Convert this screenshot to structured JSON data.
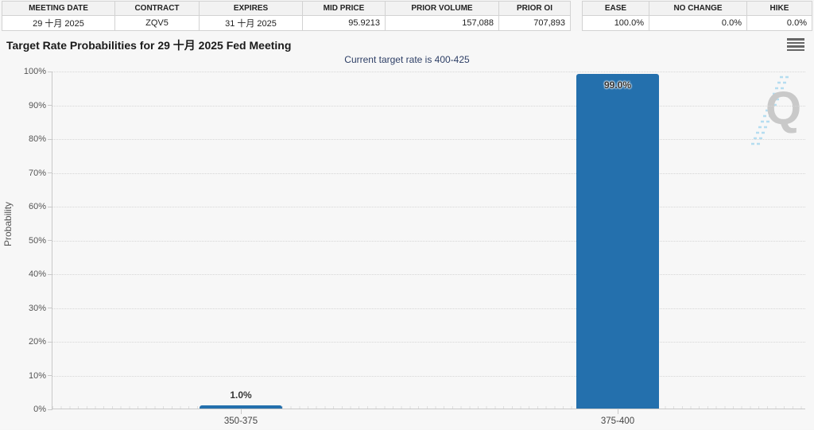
{
  "tables": {
    "contract_table": {
      "headers": [
        "MEETING DATE",
        "CONTRACT",
        "EXPIRES",
        "MID PRICE",
        "PRIOR VOLUME",
        "PRIOR OI"
      ],
      "values": [
        "29 十月 2025",
        "ZQV5",
        "31 十月 2025",
        "95.9213",
        "157,088",
        "707,893"
      ]
    },
    "rate_move_table": {
      "headers": [
        "EASE",
        "NO CHANGE",
        "HIKE"
      ],
      "values": [
        "100.0%",
        "0.0%",
        "0.0%"
      ]
    }
  },
  "chart": {
    "title": "Target Rate Probabilities for 29 十月 2025 Fed Meeting",
    "subtitle": "Current target rate is 400-425",
    "icons": {
      "menu": "hamburger-menu-icon",
      "watermark": "quikstrike-q-watermark"
    },
    "watermark_letter": "Q",
    "colors": {
      "bar": "#2470ad",
      "subtitle": "#2e3f66",
      "watermark_gray": "#c9c9c9",
      "watermark_blue": "#b5ddf0"
    }
  },
  "chart_data": {
    "type": "bar",
    "title": "Target Rate Probabilities for 29 十月 2025 Fed Meeting",
    "subtitle": "Current target rate is 400-425",
    "categories": [
      "350-375",
      "375-400"
    ],
    "values": [
      1.0,
      99.0
    ],
    "data_labels": [
      "1.0%",
      "99.0%"
    ],
    "xlabel": "",
    "ylabel": "Probability",
    "ylim": [
      0,
      100
    ],
    "yticks": [
      "0%",
      "10%",
      "20%",
      "30%",
      "40%",
      "50%",
      "60%",
      "70%",
      "80%",
      "90%",
      "100%"
    ],
    "grid": "horizontal-dotted",
    "legend": "none",
    "bar_color": "#2470ad"
  }
}
